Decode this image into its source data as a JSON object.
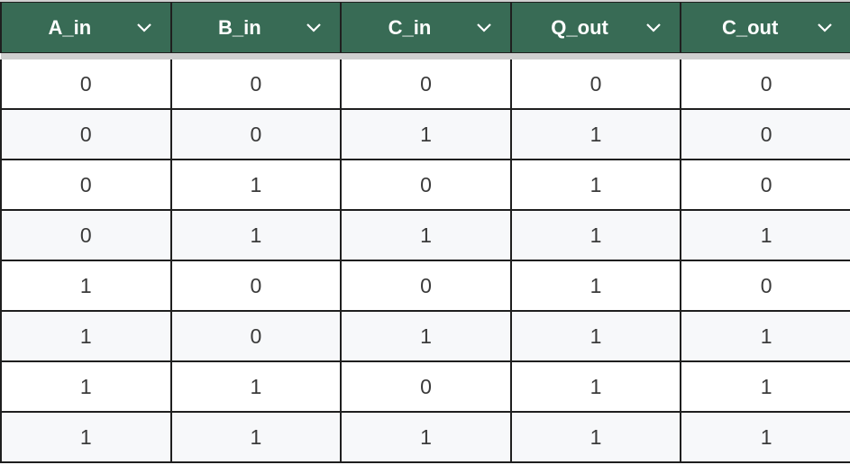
{
  "columns": [
    {
      "label": "A_in",
      "menu_icon": "chevron-down-icon"
    },
    {
      "label": "B_in",
      "menu_icon": "chevron-down-icon"
    },
    {
      "label": "C_in",
      "menu_icon": "chevron-down-icon"
    },
    {
      "label": "Q_out",
      "menu_icon": "chevron-down-icon"
    },
    {
      "label": "C_out",
      "menu_icon": "chevron-down-icon"
    }
  ],
  "rows": [
    [
      "0",
      "0",
      "0",
      "0",
      "0"
    ],
    [
      "0",
      "0",
      "1",
      "1",
      "0"
    ],
    [
      "0",
      "1",
      "0",
      "1",
      "0"
    ],
    [
      "0",
      "1",
      "1",
      "1",
      "1"
    ],
    [
      "1",
      "0",
      "0",
      "1",
      "0"
    ],
    [
      "1",
      "0",
      "1",
      "1",
      "1"
    ],
    [
      "1",
      "1",
      "0",
      "1",
      "1"
    ],
    [
      "1",
      "1",
      "1",
      "1",
      "1"
    ]
  ],
  "colors": {
    "header_bg": "#386b55",
    "header_text": "#ffffff",
    "row_alt_bg": "#f7f8fa",
    "grid_line": "#1f1f1f"
  }
}
